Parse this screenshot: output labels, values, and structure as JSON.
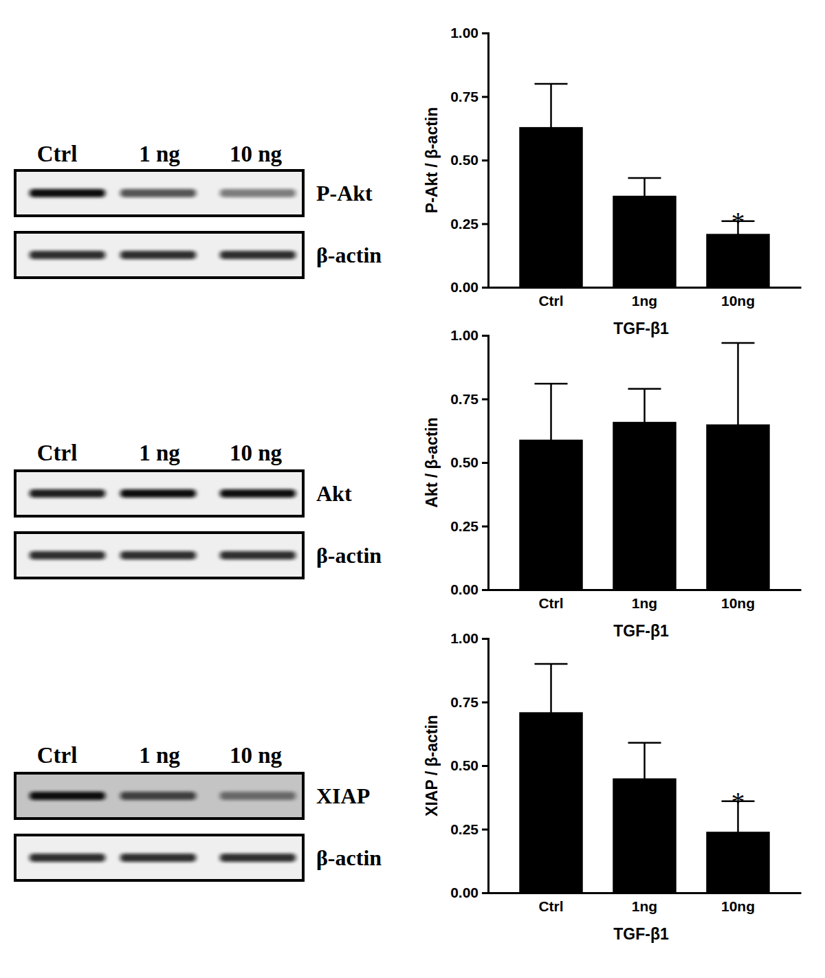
{
  "blots": [
    {
      "lanes": [
        "Ctrl",
        "1 ng",
        "10 ng"
      ],
      "rows": [
        "P-Akt",
        "β-actin"
      ]
    },
    {
      "lanes": [
        "Ctrl",
        "1 ng",
        "10 ng"
      ],
      "rows": [
        "Akt",
        "β-actin"
      ]
    },
    {
      "lanes": [
        "Ctrl",
        "1 ng",
        "10 ng"
      ],
      "rows": [
        "XIAP",
        "β-actin"
      ]
    }
  ],
  "chart_data": [
    {
      "type": "bar",
      "categories": [
        "Ctrl",
        "1ng",
        "10ng"
      ],
      "values": [
        0.63,
        0.36,
        0.21
      ],
      "errors": [
        0.17,
        0.07,
        0.05
      ],
      "color": "#000000",
      "x_label": "TGF-β1",
      "y_label": "P-Akt / β-actin",
      "ylim": [
        0,
        1
      ],
      "yticks": [
        {
          "value": 0,
          "label": "0.00"
        },
        {
          "value": 0.25,
          "label": "0.25"
        },
        {
          "value": 0.5,
          "label": "0.50"
        },
        {
          "value": 0.75,
          "label": "0.75"
        },
        {
          "value": 1,
          "label": "1.00"
        }
      ],
      "annotations": [
        {
          "text": "*",
          "category": "10ng"
        }
      ]
    },
    {
      "type": "bar",
      "categories": [
        "Ctrl",
        "1ng",
        "10ng"
      ],
      "values": [
        0.59,
        0.66,
        0.65
      ],
      "errors": [
        0.22,
        0.13,
        0.32
      ],
      "color": "#000000",
      "x_label": "TGF-β1",
      "y_label": "Akt / β-actin",
      "ylim": [
        0,
        1
      ],
      "yticks": [
        {
          "value": 0,
          "label": "0.00"
        },
        {
          "value": 0.25,
          "label": "0.25"
        },
        {
          "value": 0.5,
          "label": "0.50"
        },
        {
          "value": 0.75,
          "label": "0.75"
        },
        {
          "value": 1,
          "label": "1.00"
        }
      ]
    },
    {
      "type": "bar",
      "categories": [
        "Ctrl",
        "1ng",
        "10ng"
      ],
      "values": [
        0.71,
        0.45,
        0.24
      ],
      "errors": [
        0.19,
        0.14,
        0.12
      ],
      "color": "#000000",
      "x_label": "TGF-β1",
      "y_label": "XIAP / β-actin",
      "ylim": [
        0,
        1
      ],
      "yticks": [
        {
          "value": 0,
          "label": "0.00"
        },
        {
          "value": 0.25,
          "label": "0.25"
        },
        {
          "value": 0.5,
          "label": "0.50"
        },
        {
          "value": 0.75,
          "label": "0.75"
        },
        {
          "value": 1,
          "label": "1.00"
        }
      ],
      "annotations": [
        {
          "text": "*",
          "category": "10ng"
        }
      ]
    }
  ]
}
